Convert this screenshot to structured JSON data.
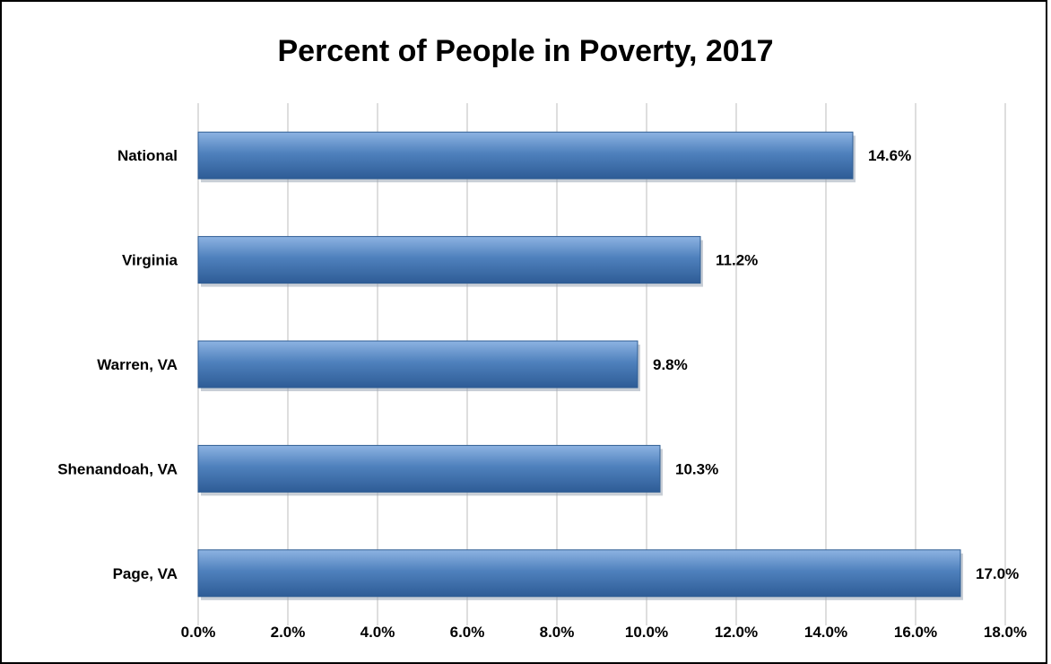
{
  "chart_data": {
    "type": "bar",
    "orientation": "horizontal",
    "title": "Percent of People in Poverty, 2017",
    "xlabel": "",
    "ylabel": "",
    "categories": [
      "National",
      "Virginia",
      "Warren, VA",
      "Shenandoah, VA",
      "Page, VA"
    ],
    "values": [
      14.6,
      11.2,
      9.8,
      10.3,
      17.0
    ],
    "data_labels": [
      "14.6%",
      "11.2%",
      "9.8%",
      "10.3%",
      "17.0%"
    ],
    "xlim": [
      0,
      18
    ],
    "x_ticks": [
      0,
      2,
      4,
      6,
      8,
      10,
      12,
      14,
      16,
      18
    ],
    "x_tick_labels": [
      "0.0%",
      "2.0%",
      "4.0%",
      "6.0%",
      "8.0%",
      "10.0%",
      "12.0%",
      "14.0%",
      "16.0%",
      "18.0%"
    ],
    "grid": true,
    "legend": "none",
    "bar_color": "#4F81BD"
  }
}
